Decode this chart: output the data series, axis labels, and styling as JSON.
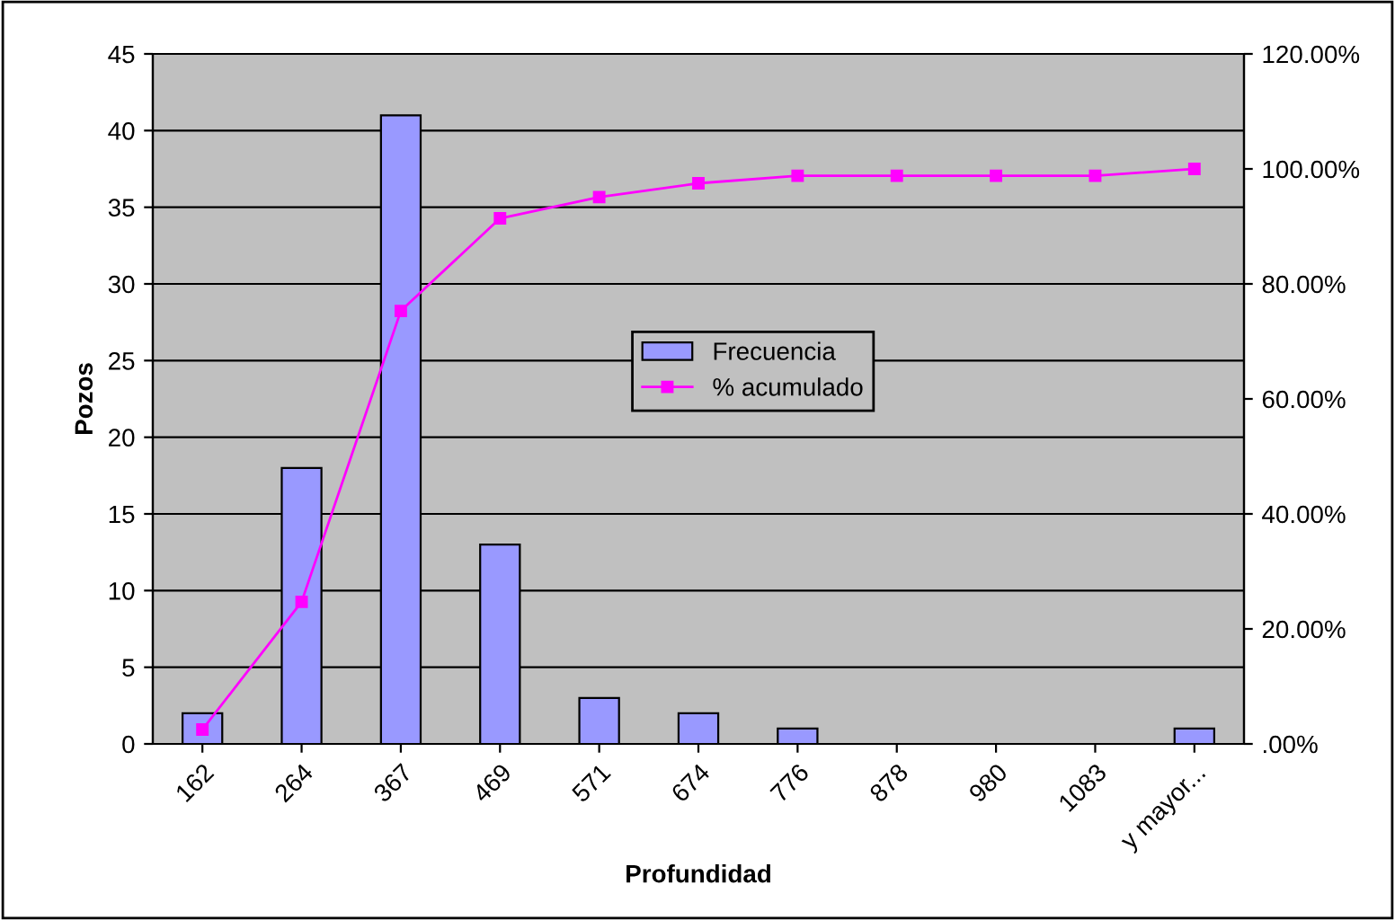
{
  "chart_data": {
    "type": "bar",
    "categories": [
      "162",
      "264",
      "367",
      "469",
      "571",
      "674",
      "776",
      "878",
      "980",
      "1083",
      "y mayor..."
    ],
    "series": [
      {
        "name": "Frecuencia",
        "color": "#9999ff",
        "values": [
          2,
          18,
          41,
          13,
          3,
          2,
          1,
          0,
          0,
          0,
          1
        ]
      },
      {
        "name": "% acumulado",
        "type": "line",
        "axis": "y2",
        "color": "#ff00ff",
        "marker": "square",
        "values": [
          2.5,
          24.7,
          75.3,
          91.4,
          95.1,
          97.5,
          98.8,
          98.8,
          98.8,
          98.8,
          100
        ]
      }
    ],
    "xlabel": "Profundidad",
    "ylabel": "Pozos",
    "ylim": [
      0,
      45
    ],
    "yticks": [
      0,
      5,
      10,
      15,
      20,
      25,
      30,
      35,
      40,
      45
    ],
    "y2lim": [
      0,
      120
    ],
    "y2ticks": [
      {
        "value": 0,
        "label": ".00%"
      },
      {
        "value": 20,
        "label": "20.00%"
      },
      {
        "value": 40,
        "label": "40.00%"
      },
      {
        "value": 60,
        "label": "60.00%"
      },
      {
        "value": 80,
        "label": "80.00%"
      },
      {
        "value": 100,
        "label": "100.00%"
      },
      {
        "value": 120,
        "label": "120.00%"
      }
    ],
    "grid": "y",
    "legend": "center"
  }
}
